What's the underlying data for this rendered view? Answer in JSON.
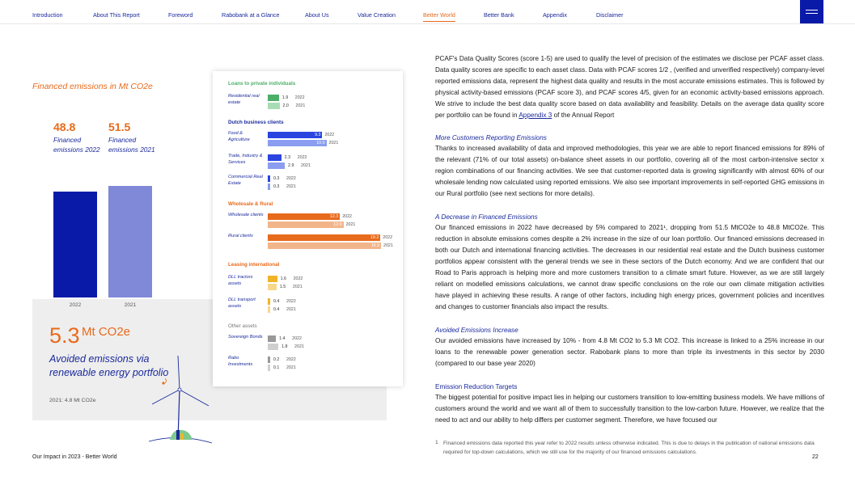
{
  "nav": {
    "items": [
      "Introduction",
      "About This Report",
      "Foreword",
      "Rabobank at a Glance",
      "About Us",
      "Value Creation",
      "Better World",
      "Better Bank",
      "Appendix",
      "Disclaimer"
    ],
    "active": "Better World"
  },
  "left_panel": {
    "title": "Financed emissions in Mt CO2e",
    "v2022": "48.8",
    "v2021": "51.5",
    "label2022": "Financed emissions 2022",
    "label2021": "Financed emissions 2021",
    "year2022": "2022",
    "year2021": "2021",
    "avoided_value": "5.3",
    "avoided_unit": "Mt CO2e",
    "avoided_text": "Avoided emissions via renewable energy portfolio",
    "avoided_prior": "2021: 4.8 Mt CO2e",
    "colors": {
      "bar2022": "#0a1aa8",
      "bar2021": "#8088d8",
      "accent": "#e86a1c"
    }
  },
  "chart_data": [
    {
      "type": "bar",
      "title": "Financed emissions in Mt CO2e",
      "categories": [
        "2022",
        "2021"
      ],
      "values": [
        48.8,
        51.5
      ]
    },
    {
      "type": "bar",
      "orientation": "horizontal",
      "groups": [
        {
          "name": "Loans to private individuals",
          "color": "#4caf68",
          "color_prior": "#a8dcb5",
          "rows": [
            {
              "label": "Residential real estate",
              "v2022": 1.9,
              "v2021": 2.0
            }
          ]
        },
        {
          "name": "Dutch business clients",
          "color": "#2a44e0",
          "color_prior": "#8a9df0",
          "rows": [
            {
              "label": "Food & Agriculture",
              "v2022": 9.3,
              "v2021": 10.0
            },
            {
              "label": "Trade, Industry & Services",
              "v2022": 2.3,
              "v2021": 2.9
            },
            {
              "label": "Commercial Real Estate",
              "v2022": 0.3,
              "v2021": 0.3
            }
          ]
        },
        {
          "name": "Wholesale & Rural",
          "color": "#e86a1c",
          "color_prior": "#f2b58a",
          "rows": [
            {
              "label": "Wholesale clients",
              "v2022": 12.3,
              "v2021": 12.9
            },
            {
              "label": "Rural clients",
              "v2022": 19.2,
              "v2021": 19.3
            }
          ]
        },
        {
          "name": "Leasing international",
          "color": "#f0b429",
          "color_prior": "#f7d88a",
          "rows": [
            {
              "label": "DLL tractors assets",
              "v2022": 1.6,
              "v2021": 1.5
            },
            {
              "label": "DLL transport assets",
              "v2022": 0.4,
              "v2021": 0.4
            }
          ]
        },
        {
          "name": "Other assets",
          "color": "#999999",
          "color_prior": "#cfcfcf",
          "rows": [
            {
              "label": "Sovereign Bonds",
              "v2022": 1.4,
              "v2021": 1.8
            },
            {
              "label": "Rabo Investments",
              "v2022": 0.2,
              "v2021": 0.1
            }
          ]
        }
      ],
      "year_labels": [
        "2022",
        "2021"
      ]
    }
  ],
  "text": {
    "p1": "PCAF's Data Quality Scores (score 1-5) are used to qualify the level of precision of the estimates we disclose per PCAF asset class. Data quality scores are specific to each asset class. Data with PCAF scores 1/2 , (verified and unverified respectively) company-level reported emissions data, represent the highest data quality and results in the most accurate emissions estimates. This is followed by physical activity-based emissions (PCAF score 3), and PCAF scores 4/5, given for an economic activity-based emissions approach. We strive to include the best data quality score based on data availability and feasibility. Details on the average data quality score per portfolio can be found in",
    "p1_link": "Appendix 3",
    "p1_end": "of the Annual Report",
    "h2": "More Customers Reporting Emissions",
    "p2": "Thanks to increased availability of data and improved methodologies, this year we are able to report financed emissions for 89% of the relevant (71% of our total assets) on-balance sheet assets in our portfolio, covering all of the most carbon-intensive sector x region combinations of our financing activities. We see that customer-reported data is growing significantly with almost 60% of our wholesale lending now calculated using reported emissions. We also see important improvements in self-reported GHG emissions in our Rural portfolio (see next sections for more details).",
    "h3": "A Decrease in Financed Emissions",
    "p3": "Our financed emissions in 2022 have decreased by 5% compared to 2021¹, dropping from 51.5 MtCO2e to 48.8 MtCO2e. This reduction in absolute emissions comes despite a 2% increase in the size of our loan portfolio. Our financed emissions decreased in both our Dutch and international financing activities. The decreases in our residential real estate and the Dutch business customer portfolios appear consistent with the general trends we see in these sectors of the Dutch economy. And we are confident that our Road to Paris approach is helping more and more customers transition to a climate smart future. However, as we are still largely reliant on modelled emissions calculations, we cannot draw specific conclusions on the role our own climate mitigation activities have played in achieving these results. A range of other factors, including high energy prices, government policies and incentives and changes to customer financials also impact the results.",
    "h4": "Avoided Emissions Increase",
    "p4": "Our avoided emissions have increased by 10% - from 4.8 Mt CO2 to 5.3 Mt CO2. This increase is linked to a 25% increase in our loans to the renewable power generation sector. Rabobank plans to more than triple its investments in this sector by 2030 (compared to our base year 2020)",
    "h5": "Emission Reduction Targets",
    "p5": "The biggest potential for positive impact lies in helping our customers transition to low-emitting business models. We have millions of customers around the world and we want all of them to successfully transition to the low-carbon future. However, we realize that the need to act and our ability to help differs per customer segment. Therefore, we have focused our",
    "fn_mark": "1",
    "footnote": "Financed emissions data reported this year refer to 2022 results unless otherwise indicated. This is due to delays in the publication of national emissions data required for top-down calculations, which we still use for the majority of our financed emissions calculations."
  },
  "footer": {
    "left": "Our Impact in 2023 - Better World",
    "page": "22"
  }
}
